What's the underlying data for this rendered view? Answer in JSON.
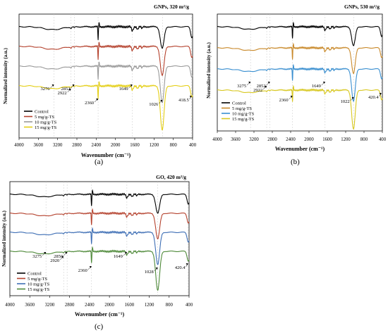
{
  "chart_data": [
    {
      "panel_label": "(a)",
      "type": "line",
      "title": "GNPs, 320 m²/g",
      "xlabel": "Wavenumber (cm⁻¹)",
      "ylabel": "Normalized intensity (a.u.)",
      "xlim": [
        4000,
        400
      ],
      "x_reversed": true,
      "xticks": [
        4000,
        3600,
        3200,
        2800,
        2400,
        2000,
        1600,
        1200,
        800,
        400
      ],
      "xtick_labels": [
        "4000",
        "3600",
        "3200",
        "2800",
        "2400",
        "2000",
        "1600",
        "1200",
        "800",
        "400"
      ],
      "grid": "vertical dashed at labelled peaks",
      "legend_position": "bottom-left",
      "series": [
        {
          "name": "Control",
          "color": "#000000",
          "offset": 3
        },
        {
          "name": "5 mg/g-TS",
          "color": "#b5432f",
          "offset": 2
        },
        {
          "name": "10 mg/g-TS",
          "color": "#9a9a9a",
          "offset": 1
        },
        {
          "name": "15 mg/g-TS",
          "color": "#e4cf17",
          "offset": 0
        }
      ],
      "annotations": [
        {
          "label": "3276",
          "x": 3276
        },
        {
          "label": "2922",
          "x": 2922
        },
        {
          "label": "2852",
          "x": 2852
        },
        {
          "label": "2360",
          "x": 2360
        },
        {
          "label": "1649",
          "x": 1649
        },
        {
          "label": "1026",
          "x": 1026
        },
        {
          "label": "418.5",
          "x": 418.5
        }
      ]
    },
    {
      "panel_label": "(b)",
      "type": "line",
      "title": "GNPs, 530 m²/g",
      "xlabel": "Wavenumber (cm⁻¹)",
      "ylabel": "Normalized intensity (a.u.)",
      "xlim": [
        4000,
        400
      ],
      "x_reversed": true,
      "xticks": [
        4000,
        3600,
        3200,
        2800,
        2400,
        2000,
        1600,
        1200,
        800,
        400
      ],
      "xtick_labels": [
        "4000",
        "3600",
        "3200",
        "2800",
        "2400",
        "2000",
        "1600",
        "1200",
        "800",
        "400"
      ],
      "grid": "vertical dashed at labelled peaks",
      "legend_position": "bottom-left",
      "series": [
        {
          "name": "Control",
          "color": "#000000",
          "offset": 3
        },
        {
          "name": "5 mg/g-TS",
          "color": "#c98a2c",
          "offset": 2
        },
        {
          "name": "10 mg/g-TS",
          "color": "#3a8fd0",
          "offset": 1
        },
        {
          "name": "15 mg/g-TS",
          "color": "#d8c822",
          "offset": 0
        }
      ],
      "annotations": [
        {
          "label": "3275",
          "x": 3275
        },
        {
          "label": "2922",
          "x": 2922
        },
        {
          "label": "2852",
          "x": 2852
        },
        {
          "label": "2360",
          "x": 2360
        },
        {
          "label": "1649",
          "x": 1649
        },
        {
          "label": "1022",
          "x": 1022
        },
        {
          "label": "420.4",
          "x": 420.4
        }
      ]
    },
    {
      "panel_label": "(c)",
      "type": "line",
      "title": "GO, 420 m²/g",
      "xlabel": "Wavenumber (cm⁻¹)",
      "ylabel": "Normalized intensity (a.u.)",
      "xlim": [
        4000,
        400
      ],
      "x_reversed": true,
      "xticks": [
        4000,
        3600,
        3200,
        2800,
        2400,
        2000,
        1600,
        1200,
        800,
        400
      ],
      "xtick_labels": [
        "4000",
        "3600",
        "3200",
        "2800",
        "2400",
        "2000",
        "1600",
        "1200",
        "800",
        "400"
      ],
      "grid": "vertical dashed at labelled peaks",
      "legend_position": "bottom-left",
      "series": [
        {
          "name": "Control",
          "color": "#000000",
          "offset": 3
        },
        {
          "name": "5 mg/g-TS",
          "color": "#b5432f",
          "offset": 2
        },
        {
          "name": "10 mg/g-TS",
          "color": "#3f6fb5",
          "offset": 1
        },
        {
          "name": "15 mg/g-TS",
          "color": "#4f8a3a",
          "offset": 0
        }
      ],
      "annotations": [
        {
          "label": "3275",
          "x": 3275
        },
        {
          "label": "2920",
          "x": 2920
        },
        {
          "label": "2850",
          "x": 2850
        },
        {
          "label": "2360",
          "x": 2360
        },
        {
          "label": "1649",
          "x": 1649
        },
        {
          "label": "1028",
          "x": 1028
        },
        {
          "label": "420.4",
          "x": 420.4
        }
      ]
    }
  ]
}
